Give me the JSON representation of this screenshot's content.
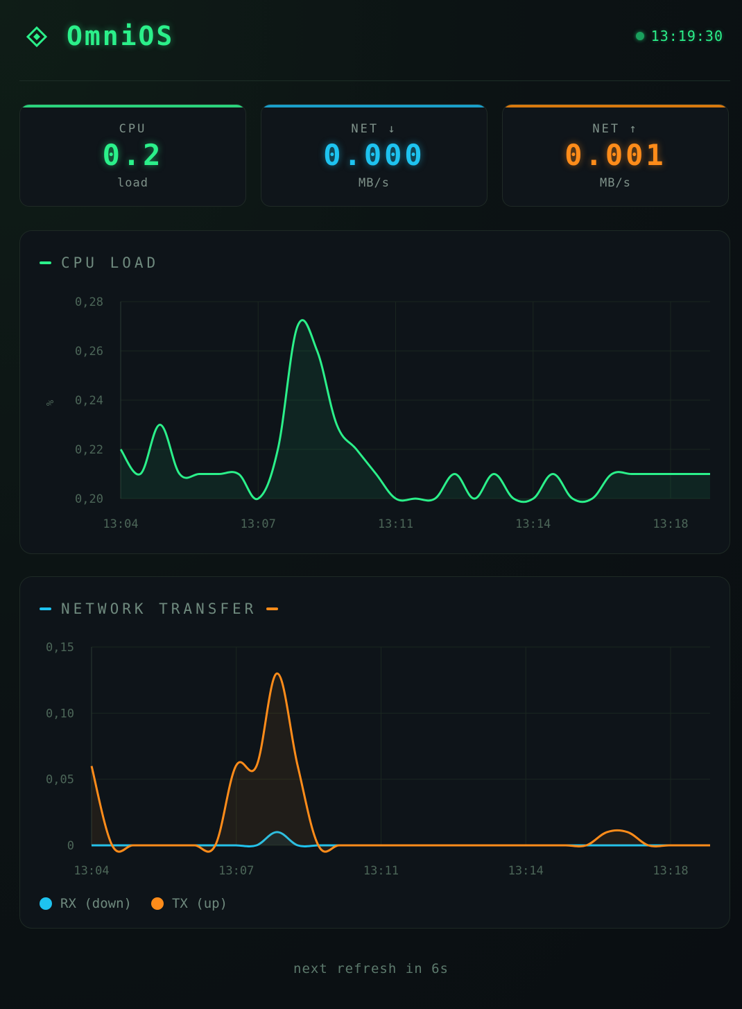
{
  "header": {
    "title": "OmniOS",
    "clock": "13:19:30",
    "logo_icon": "diamond-logo-icon",
    "status_color": "#1aa05d"
  },
  "stats": [
    {
      "label": "CPU",
      "value": "0.2",
      "unit": "load",
      "color": "#2bf08a"
    },
    {
      "label": "NET ↓",
      "value": "0.000",
      "unit": "MB/s",
      "color": "#1ec3f0"
    },
    {
      "label": "NET ↑",
      "value": "0.001",
      "unit": "MB/s",
      "color": "#ff8c1a"
    }
  ],
  "cpu_panel": {
    "title": "CPU LOAD"
  },
  "network_panel": {
    "title": "NETWORK TRANSFER",
    "legend": [
      {
        "label": "RX (down)",
        "color": "#1ec3f0"
      },
      {
        "label": "TX (up)",
        "color": "#ff8c1a"
      }
    ]
  },
  "footer": {
    "text": "next refresh in 6s"
  },
  "chart_data": [
    {
      "type": "area",
      "title": "CPU LOAD",
      "xlabel": "",
      "ylabel": "%",
      "ylim": [
        0.2,
        0.28
      ],
      "yticks": [
        "0,28",
        "0,26",
        "0,24",
        "0,22",
        "0,20"
      ],
      "ytick_values": [
        0.28,
        0.26,
        0.24,
        0.22,
        0.2
      ],
      "xticks": [
        "13:04",
        "13:07",
        "13:11",
        "13:14",
        "13:18"
      ],
      "grid": true,
      "color": "#2bf08a",
      "series": [
        {
          "values": [
            0.22,
            0.21,
            0.23,
            0.21,
            0.21,
            0.21,
            0.21,
            0.2,
            0.22,
            0.27,
            0.26,
            0.23,
            0.22,
            0.21,
            0.2,
            0.2,
            0.2,
            0.21,
            0.2,
            0.21,
            0.2,
            0.2,
            0.21,
            0.2,
            0.2,
            0.21,
            0.21,
            0.21,
            0.21,
            0.21,
            0.21
          ]
        }
      ]
    },
    {
      "type": "area",
      "title": "NETWORK TRANSFER",
      "xlabel": "",
      "ylabel": "",
      "ylim": [
        0,
        0.15
      ],
      "yticks": [
        "0,15",
        "0,10",
        "0,05",
        "0"
      ],
      "ytick_values": [
        0.15,
        0.1,
        0.05,
        0
      ],
      "xticks": [
        "13:04",
        "13:07",
        "13:11",
        "13:14",
        "13:18"
      ],
      "grid": true,
      "series": [
        {
          "name": "RX (down)",
          "color": "#1ec3f0",
          "values": [
            0,
            0,
            0,
            0,
            0,
            0,
            0,
            0,
            0,
            0.01,
            0,
            0,
            0,
            0,
            0,
            0,
            0,
            0,
            0,
            0,
            0,
            0,
            0,
            0,
            0,
            0,
            0,
            0,
            0,
            0,
            0
          ]
        },
        {
          "name": "TX (up)",
          "color": "#ff8c1a",
          "values": [
            0.06,
            0,
            0,
            0,
            0,
            0,
            0,
            0.06,
            0.06,
            0.13,
            0.06,
            0,
            0,
            0,
            0,
            0,
            0,
            0,
            0,
            0,
            0,
            0,
            0,
            0,
            0,
            0.01,
            0.01,
            0,
            0,
            0,
            0
          ]
        }
      ]
    }
  ]
}
